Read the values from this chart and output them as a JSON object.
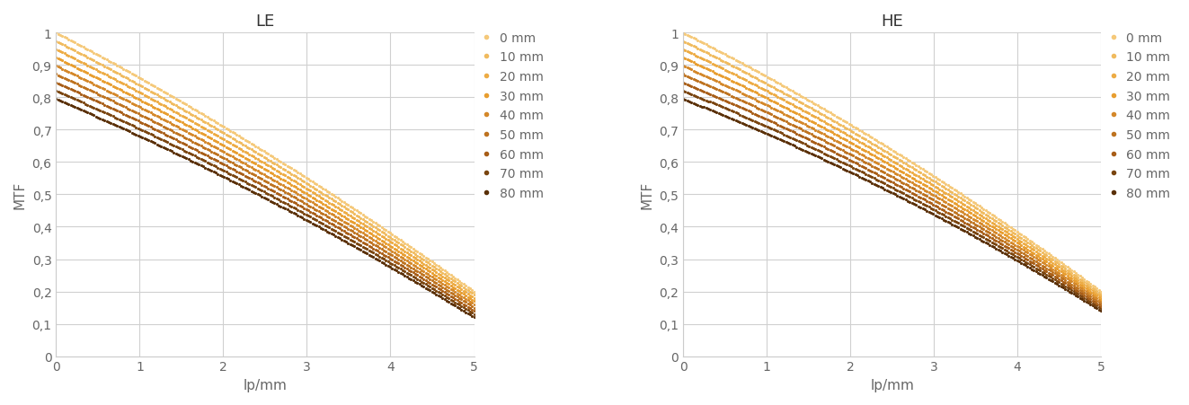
{
  "title_le": "LE",
  "title_he": "HE",
  "xlabel": "lp/mm",
  "ylabel": "MTF",
  "xlim": [
    0,
    5
  ],
  "ylim": [
    0,
    1
  ],
  "yticks": [
    0,
    0.1,
    0.2,
    0.3,
    0.4,
    0.5,
    0.6,
    0.7,
    0.8,
    0.9,
    1
  ],
  "xticks": [
    0,
    1,
    2,
    3,
    4,
    5
  ],
  "legend_labels": [
    "0 mm",
    "10 mm",
    "20 mm",
    "30 mm",
    "40 mm",
    "50 mm",
    "60 mm",
    "70 mm",
    "80 mm"
  ],
  "thicknesses": [
    0,
    10,
    20,
    30,
    40,
    50,
    60,
    70,
    80
  ],
  "colors_dark_to_light": [
    "#5A3008",
    "#7A4510",
    "#A85E18",
    "#BE7320",
    "#D4882A",
    "#E89E30",
    "#EDAC45",
    "#F0BB5F",
    "#F5C97A"
  ],
  "background_color": "#FFFFFF",
  "grid_color": "#D0D0D0",
  "title_fontsize": 13,
  "label_fontsize": 11,
  "tick_fontsize": 10,
  "legend_fontsize": 10,
  "le_intercept_0": 1.0,
  "le_intercept_80": 0.795,
  "le_slope_0": -0.158,
  "le_slope_80": -0.132,
  "le_quad_0": 0.0,
  "le_quad_80": 0.0,
  "he_intercept_0": 1.0,
  "he_intercept_80": 0.795,
  "he_slope_0": -0.158,
  "he_slope_80": -0.13,
  "he_quad_0": 0.0,
  "he_quad_80": 0.0
}
